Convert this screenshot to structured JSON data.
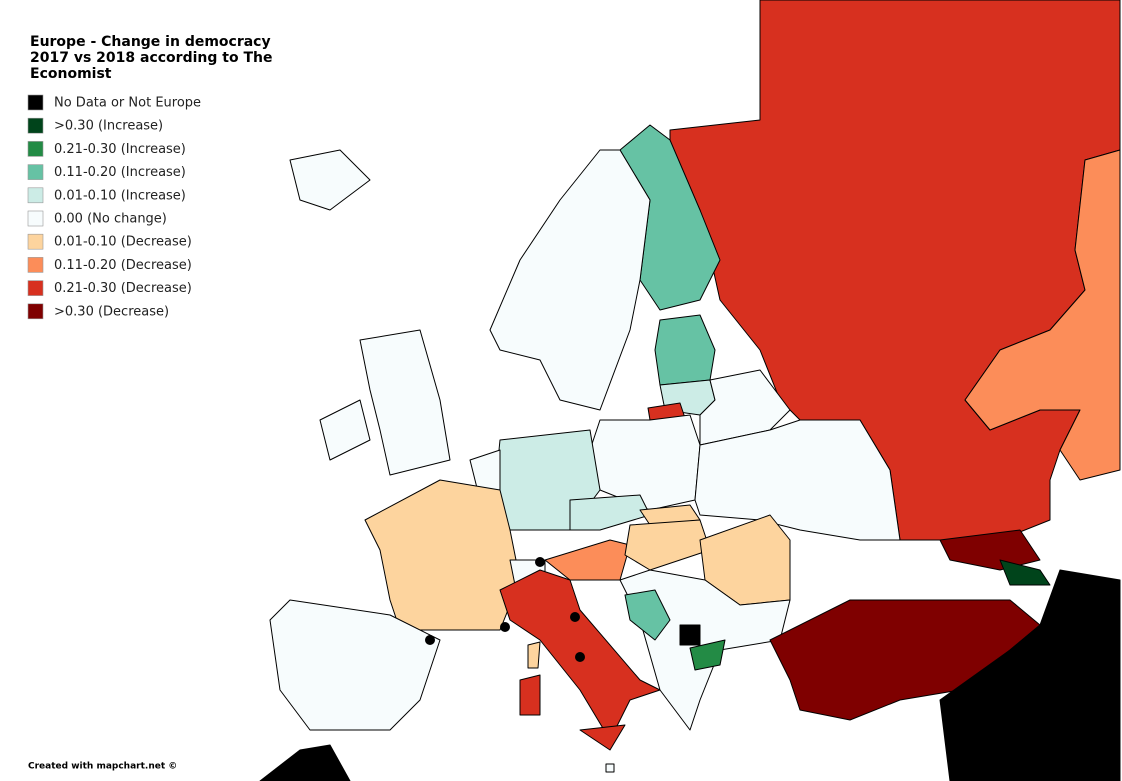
{
  "title_lines": [
    "Europe - Change in democracy",
    "2017 vs 2018 according to The",
    "Economist"
  ],
  "legend": [
    {
      "label": "No Data or Not Europe",
      "color": "#000000"
    },
    {
      "label": ">0.30 (Increase)",
      "color": "#00441b"
    },
    {
      "label": "0.21-0.30 (Increase)",
      "color": "#238b45"
    },
    {
      "label": "0.11-0.20 (Increase)",
      "color": "#66c2a4"
    },
    {
      "label": "0.01-0.10 (Increase)",
      "color": "#ccece6"
    },
    {
      "label": "0.00 (No change)",
      "color": "#f7fcfd"
    },
    {
      "label": "0.01-0.10 (Decrease)",
      "color": "#fdd49e"
    },
    {
      "label": "0.11-0.20 (Decrease)",
      "color": "#fc8d59"
    },
    {
      "label": "0.21-0.30 (Decrease)",
      "color": "#d7301f"
    },
    {
      "label": ">0.30 (Decrease)",
      "color": "#7f0000"
    }
  ],
  "credit": "Created with mapchart.net ©"
}
